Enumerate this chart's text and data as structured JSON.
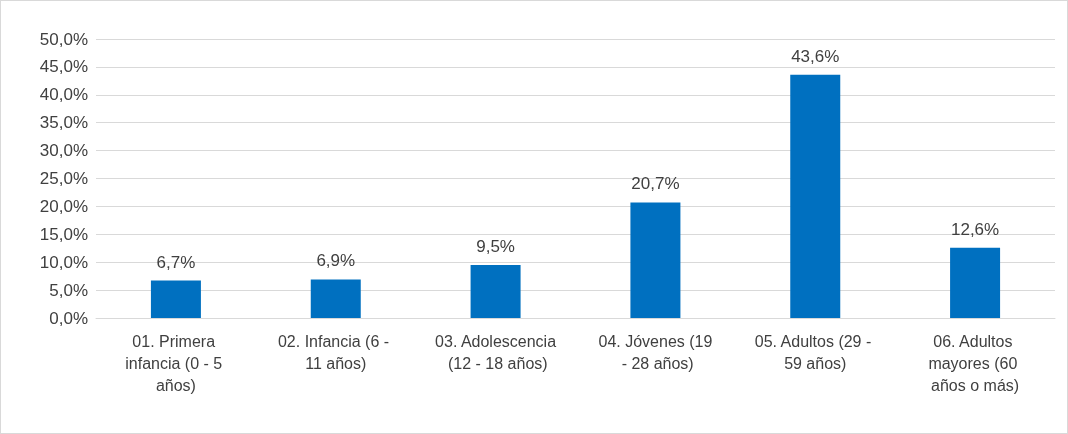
{
  "chart_data": {
    "type": "bar",
    "categories": [
      "01. Primera infancia (0 - 5 años)",
      "02. Infancia (6 - 11 años)",
      "03. Adolescencia (12 - 18 años)",
      "04. Jóvenes (19 - 28 años)",
      "05. Adultos (29 - 59 años)",
      "06. Adultos mayores (60 años o más)"
    ],
    "values": [
      6.7,
      6.9,
      9.5,
      20.7,
      43.6,
      12.6
    ],
    "value_labels": [
      "6,7%",
      "6,9%",
      "9,5%",
      "20,7%",
      "43,6%",
      "12,6%"
    ],
    "color": "#0070c0",
    "ylim": [
      0,
      50
    ],
    "yticks": [
      {
        "value": 0,
        "label": "0,0%"
      },
      {
        "value": 5,
        "label": "5,0%"
      },
      {
        "value": 10,
        "label": "10,0%"
      },
      {
        "value": 15,
        "label": "15,0%"
      },
      {
        "value": 20,
        "label": "20,0%"
      },
      {
        "value": 25,
        "label": "25,0%"
      },
      {
        "value": 30,
        "label": "30,0%"
      },
      {
        "value": 35,
        "label": "35,0%"
      },
      {
        "value": 40,
        "label": "40,0%"
      },
      {
        "value": 45,
        "label": "45,0%"
      },
      {
        "value": 50,
        "label": "50,0%"
      }
    ],
    "grid": "y"
  }
}
